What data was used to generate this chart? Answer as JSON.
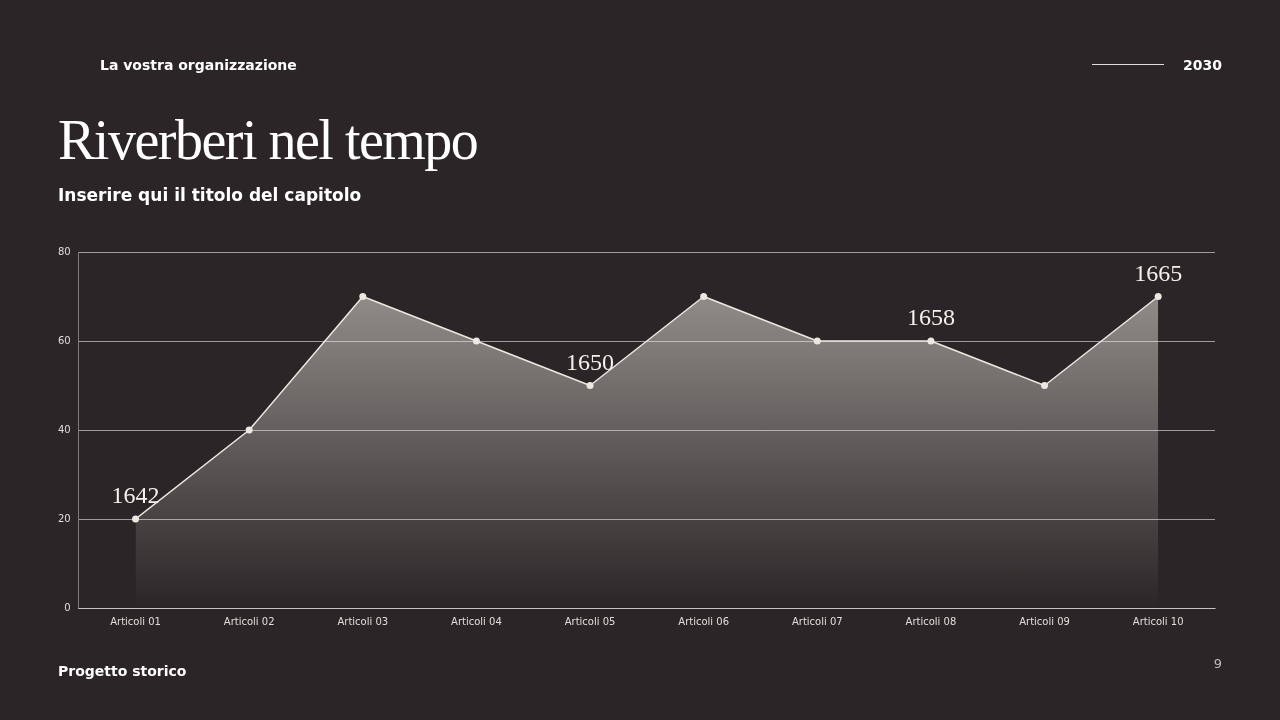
{
  "chart_data": {
    "type": "area",
    "title": "Riverberi nel tempo",
    "subtitle": "Inserire qui il titolo del capitolo",
    "categories": [
      "Articoli 01",
      "Articoli 02",
      "Articoli 03",
      "Articoli 04",
      "Articoli 05",
      "Articoli 06",
      "Articoli 07",
      "Articoli 08",
      "Articoli 09",
      "Articoli 10"
    ],
    "series": [
      {
        "color": "#ece8e0",
        "values": [
          20,
          40,
          70,
          60,
          50,
          70,
          60,
          60,
          50,
          70
        ]
      }
    ],
    "ylim": [
      0,
      80
    ],
    "yticks": [
      0,
      20,
      40,
      60,
      80
    ],
    "grid": "y",
    "legend": false,
    "marker": "circle",
    "line_style": "solid",
    "annotations": [
      "La vostra organizzazione",
      "2030",
      "Progetto storico",
      "9",
      {
        "text": "1642",
        "x": "Articoli 01",
        "y": 20
      },
      {
        "text": "1650",
        "x": "Articoli 05",
        "y": 50
      },
      {
        "text": "1658",
        "x": "Articoli 08",
        "y": 60
      },
      {
        "text": "1665",
        "x": "Articoli 10",
        "y": 70
      }
    ]
  }
}
